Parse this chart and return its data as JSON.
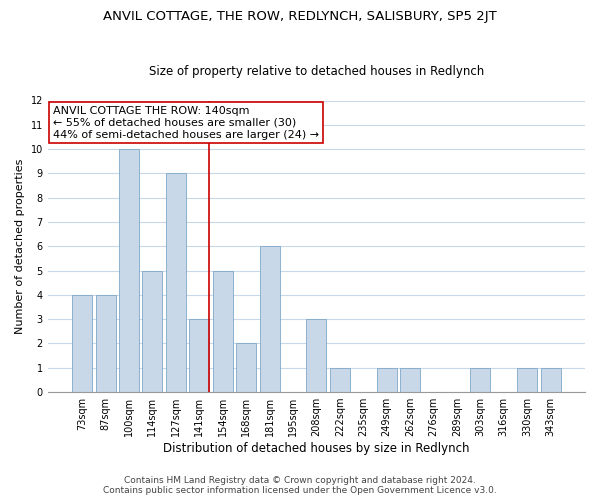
{
  "title": "ANVIL COTTAGE, THE ROW, REDLYNCH, SALISBURY, SP5 2JT",
  "subtitle": "Size of property relative to detached houses in Redlynch",
  "xlabel": "Distribution of detached houses by size in Redlynch",
  "ylabel": "Number of detached properties",
  "categories": [
    "73sqm",
    "87sqm",
    "100sqm",
    "114sqm",
    "127sqm",
    "141sqm",
    "154sqm",
    "168sqm",
    "181sqm",
    "195sqm",
    "208sqm",
    "222sqm",
    "235sqm",
    "249sqm",
    "262sqm",
    "276sqm",
    "289sqm",
    "303sqm",
    "316sqm",
    "330sqm",
    "343sqm"
  ],
  "values": [
    4,
    4,
    10,
    5,
    9,
    3,
    5,
    2,
    6,
    0,
    3,
    1,
    0,
    1,
    1,
    0,
    0,
    1,
    0,
    1,
    1
  ],
  "bar_color": "#c8d8e8",
  "bar_edge_color": "#7fa8c8",
  "vline_x_index": 5,
  "vline_color": "#cc0000",
  "annotation_title": "ANVIL COTTAGE THE ROW: 140sqm",
  "annotation_line1": "← 55% of detached houses are smaller (30)",
  "annotation_line2": "44% of semi-detached houses are larger (24) →",
  "annotation_box_color": "#ffffff",
  "annotation_box_edge": "#cc0000",
  "ylim": [
    0,
    12
  ],
  "yticks": [
    0,
    1,
    2,
    3,
    4,
    5,
    6,
    7,
    8,
    9,
    10,
    11,
    12
  ],
  "footer_line1": "Contains HM Land Registry data © Crown copyright and database right 2024.",
  "footer_line2": "Contains public sector information licensed under the Open Government Licence v3.0.",
  "background_color": "#ffffff",
  "grid_color": "#c8d8e8",
  "title_fontsize": 9.5,
  "subtitle_fontsize": 8.5,
  "xlabel_fontsize": 8.5,
  "ylabel_fontsize": 8,
  "tick_fontsize": 7,
  "annotation_fontsize": 8,
  "footer_fontsize": 6.5
}
